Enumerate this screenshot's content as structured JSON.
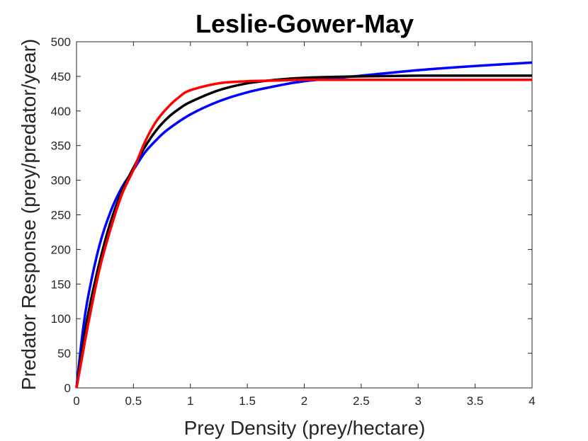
{
  "chart_data": {
    "type": "line",
    "title": "Leslie-Gower-May",
    "xlabel": "Prey Density (prey/hectare)",
    "ylabel": "Predator Response (prey/predator/year)",
    "xlim": [
      0,
      4
    ],
    "ylim": [
      0,
      500
    ],
    "x_ticks": [
      "0",
      "0.5",
      "1",
      "1.5",
      "2",
      "2.5",
      "3",
      "3.5",
      "4"
    ],
    "y_ticks": [
      "0",
      "50",
      "100",
      "150",
      "200",
      "250",
      "300",
      "350",
      "400",
      "450",
      "500"
    ],
    "grid": false,
    "legend": false,
    "series": [
      {
        "color": "#0000ff",
        "x": [
          0,
          0.05,
          0.1,
          0.2,
          0.3,
          0.4,
          0.5,
          0.6,
          0.7,
          0.8,
          1.0,
          1.25,
          1.5,
          1.75,
          2.0,
          2.5,
          3.0,
          3.5,
          4.0
        ],
        "y": [
          0,
          75,
          130,
          205,
          255,
          290,
          315,
          340,
          358,
          373,
          395,
          414,
          427,
          436,
          443,
          451,
          459,
          465,
          470
        ]
      },
      {
        "color": "#000000",
        "x": [
          0,
          0.05,
          0.1,
          0.2,
          0.3,
          0.4,
          0.5,
          0.6,
          0.7,
          0.8,
          0.9,
          1.0,
          1.25,
          1.5,
          1.75,
          2.0,
          2.5,
          3.0,
          3.5,
          4.0
        ],
        "y": [
          0,
          55,
          105,
          180,
          240,
          285,
          318,
          348,
          372,
          390,
          403,
          413,
          430,
          440,
          445,
          448,
          450,
          451,
          451,
          451
        ]
      },
      {
        "color": "#ff0000",
        "x": [
          0,
          0.05,
          0.1,
          0.2,
          0.3,
          0.4,
          0.5,
          0.6,
          0.7,
          0.8,
          0.9,
          1.0,
          1.25,
          1.5,
          1.75,
          2.0,
          2.5,
          3.0,
          3.5,
          4.0
        ],
        "y": [
          0,
          45,
          90,
          170,
          230,
          280,
          315,
          355,
          385,
          405,
          420,
          430,
          440,
          443,
          444,
          445,
          445,
          445,
          445,
          445
        ]
      }
    ]
  }
}
